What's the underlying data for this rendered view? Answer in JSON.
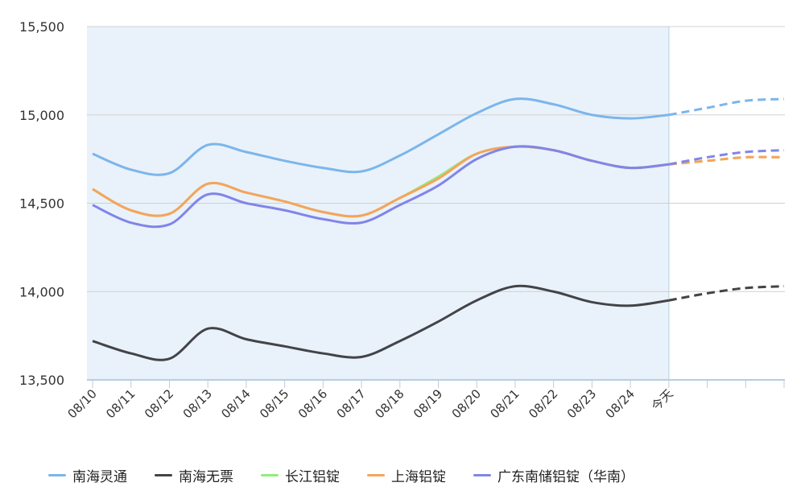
{
  "chart_data": {
    "type": "line",
    "title": "",
    "xlabel": "",
    "ylabel": "",
    "categories": [
      "08/10",
      "08/11",
      "08/12",
      "08/13",
      "08/14",
      "08/15",
      "08/16",
      "08/17",
      "08/18",
      "08/19",
      "08/20",
      "08/21",
      "08/22",
      "08/23",
      "08/24",
      "今天",
      "",
      "",
      ""
    ],
    "today_index": 15,
    "ylim": [
      13500,
      15500
    ],
    "yticks": [
      13500,
      14000,
      14500,
      15000,
      15500
    ],
    "ytick_labels": [
      "13,500",
      "14,000",
      "14,500",
      "15,000",
      "15,500"
    ],
    "grid": true,
    "legend_position": "bottom",
    "series": [
      {
        "name": "南海灵通",
        "color": "#7cb5ec",
        "values": [
          14780,
          14690,
          14670,
          14830,
          14790,
          14740,
          14700,
          14680,
          14770,
          14890,
          15010,
          15090,
          15060,
          15000,
          14980,
          15000,
          15040,
          15080,
          15090
        ]
      },
      {
        "name": "南海无票",
        "color": "#434348",
        "values": [
          13720,
          13650,
          13620,
          13790,
          13730,
          13690,
          13650,
          13630,
          13720,
          13830,
          13950,
          14030,
          14000,
          13940,
          13920,
          13950,
          13990,
          14020,
          14030
        ]
      },
      {
        "name": "长江铝锭",
        "color": "#90ed7d",
        "values": [
          14580,
          14460,
          14440,
          14610,
          14560,
          14510,
          14450,
          14430,
          14530,
          14650,
          14780,
          14820,
          14800,
          14740,
          14700,
          14720,
          14740,
          14760,
          14760
        ]
      },
      {
        "name": "上海铝锭",
        "color": "#f7a35c",
        "values": [
          14580,
          14460,
          14440,
          14610,
          14560,
          14510,
          14450,
          14430,
          14530,
          14640,
          14780,
          14820,
          14800,
          14740,
          14700,
          14720,
          14740,
          14760,
          14760
        ]
      },
      {
        "name": "广东南储铝锭（华南）",
        "color": "#8085e9",
        "values": [
          14490,
          14390,
          14380,
          14550,
          14500,
          14460,
          14410,
          14390,
          14490,
          14600,
          14750,
          14820,
          14800,
          14740,
          14700,
          14720,
          14760,
          14790,
          14800
        ]
      }
    ]
  }
}
